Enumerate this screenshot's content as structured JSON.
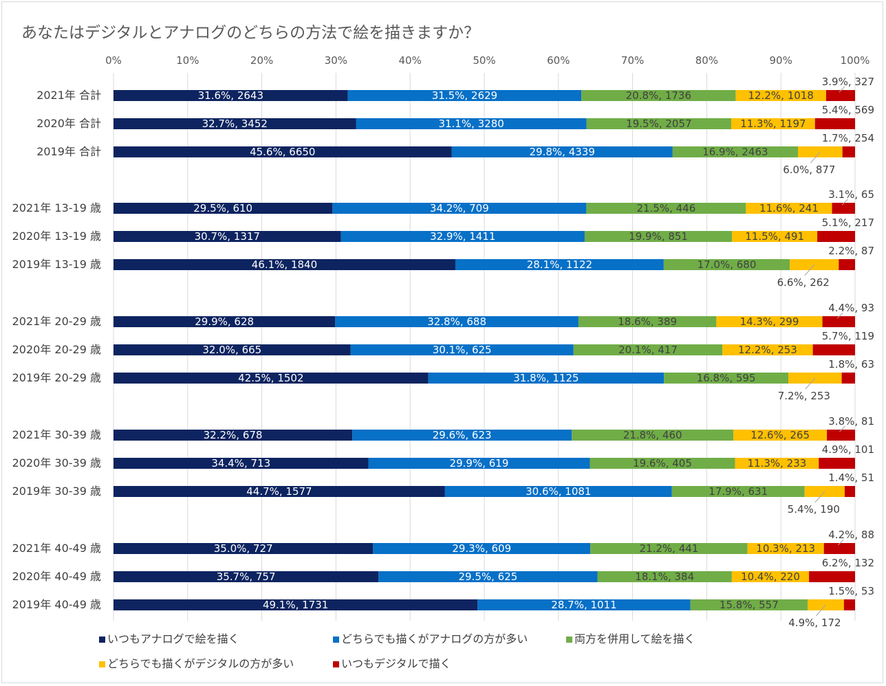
{
  "chart_data": {
    "type": "bar",
    "orientation": "horizontal",
    "stacked": "percent",
    "title": "あなたはデジタルとアナログのどちらの方法で絵を描きますか？",
    "xlabel": "",
    "ylabel": "",
    "xlim": [
      0,
      100
    ],
    "x_ticks": [
      "0%",
      "10%",
      "20%",
      "30%",
      "40%",
      "50%",
      "60%",
      "70%",
      "80%",
      "90%",
      "100%"
    ],
    "grid": true,
    "legend_position": "bottom",
    "categories": [
      "2021年 合計",
      "2020年 合計",
      "2019年 合計",
      "2021年 13-19 歳",
      "2020年 13-19 歳",
      "2019年 13-19 歳",
      "2021年 20-29 歳",
      "2020年 20-29 歳",
      "2019年 20-29 歳",
      "2021年 30-39 歳",
      "2020年 30-39 歳",
      "2019年 30-39 歳",
      "2021年 40-49 歳",
      "2020年 40-49 歳",
      "2019年 40-49 歳"
    ],
    "series": [
      {
        "name": "いつもアナログで絵を描く",
        "color": "#0d2460",
        "values": [
          31.6,
          32.7,
          45.6,
          29.5,
          30.7,
          46.1,
          29.9,
          32.0,
          42.5,
          32.2,
          34.4,
          44.7,
          35.0,
          35.7,
          49.1
        ],
        "counts": [
          2643,
          3452,
          6650,
          610,
          1317,
          1840,
          628,
          665,
          1502,
          678,
          713,
          1577,
          727,
          757,
          1731
        ],
        "labels": [
          "31.6%, 2643",
          "32.7%, 3452",
          "45.6%, 6650",
          "29.5%, 610",
          "30.7%, 1317",
          "46.1%, 1840",
          "29.9%, 628",
          "32.0%, 665",
          "42.5%, 1502",
          "32.2%, 678",
          "34.4%, 713",
          "44.7%, 1577",
          "35.0%, 727",
          "35.7%, 757",
          "49.1%, 1731"
        ]
      },
      {
        "name": "どちらでも描くがアナログの方が多い",
        "color": "#0770c7",
        "values": [
          31.5,
          31.1,
          29.8,
          34.2,
          32.9,
          28.1,
          32.8,
          30.1,
          31.8,
          29.6,
          29.9,
          30.6,
          29.3,
          29.5,
          28.7
        ],
        "counts": [
          2629,
          3280,
          4339,
          709,
          1411,
          1122,
          688,
          625,
          1125,
          623,
          619,
          1081,
          609,
          625,
          1011
        ],
        "labels": [
          "31.5%, 2629",
          "31.1%, 3280",
          "29.8%, 4339",
          "34.2%, 709",
          "32.9%, 1411",
          "28.1%, 1122",
          "32.8%, 688",
          "30.1%, 625",
          "31.8%, 1125",
          "29.6%, 623",
          "29.9%, 619",
          "30.6%, 1081",
          "29.3%, 609",
          "29.5%, 625",
          "28.7%, 1011"
        ]
      },
      {
        "name": "両方を併用して絵を描く",
        "color": "#70ad47",
        "values": [
          20.8,
          19.5,
          16.9,
          21.5,
          19.9,
          17.0,
          18.6,
          20.1,
          16.8,
          21.8,
          19.6,
          17.9,
          21.2,
          18.1,
          15.8
        ],
        "counts": [
          1736,
          2057,
          2463,
          446,
          851,
          680,
          389,
          417,
          595,
          460,
          405,
          631,
          441,
          384,
          557
        ],
        "labels": [
          "20.8%, 1736",
          "19.5%, 2057",
          "16.9%, 2463",
          "21.5%, 446",
          "19.9%, 851",
          "17.0%, 680",
          "18.6%, 389",
          "20.1%, 417",
          "16.8%, 595",
          "21.8%, 460",
          "19.6%, 405",
          "17.9%, 631",
          "21.2%, 441",
          "18.1%, 384",
          "15.8%, 557"
        ]
      },
      {
        "name": "どちらでも描くがデジタルの方が多い",
        "color": "#ffc000",
        "values": [
          12.2,
          11.3,
          6.0,
          11.6,
          11.5,
          6.6,
          14.3,
          12.2,
          7.2,
          12.6,
          11.3,
          5.4,
          10.3,
          10.4,
          4.9
        ],
        "counts": [
          1018,
          1197,
          877,
          241,
          491,
          262,
          299,
          253,
          253,
          265,
          233,
          190,
          213,
          220,
          172
        ],
        "labels": [
          "12.2%, 1018",
          "11.3%, 1197",
          "6.0%, 877",
          "11.6%, 241",
          "11.5%, 491",
          "6.6%, 262",
          "14.3%, 299",
          "12.2%, 253",
          "7.2%, 253",
          "12.6%, 265",
          "11.3%, 233",
          "5.4%, 190",
          "10.3%, 213",
          "10.4%, 220",
          "4.9%, 172"
        ]
      },
      {
        "name": "いつもデジタルで描く",
        "color": "#c00000",
        "values": [
          3.9,
          5.4,
          1.7,
          3.1,
          5.1,
          2.2,
          4.4,
          5.7,
          1.8,
          3.8,
          4.9,
          1.4,
          4.2,
          6.2,
          1.5
        ],
        "counts": [
          327,
          569,
          254,
          65,
          217,
          87,
          93,
          119,
          63,
          81,
          101,
          51,
          88,
          132,
          53
        ],
        "labels": [
          "3.9%, 327",
          "5.4%, 569",
          "1.7%, 254",
          "3.1%, 65",
          "5.1%, 217",
          "2.2%, 87",
          "4.4%, 93",
          "5.7%, 119",
          "1.8%, 63",
          "3.8%, 81",
          "4.9%, 101",
          "1.4%, 51",
          "4.2%, 88",
          "6.2%, 132",
          "1.5%, 53"
        ]
      }
    ]
  }
}
